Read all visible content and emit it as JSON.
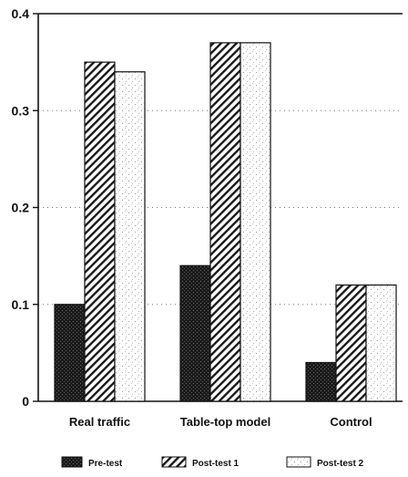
{
  "chart_data": {
    "type": "bar",
    "title": "",
    "xlabel": "",
    "ylabel": "",
    "ylim": [
      0,
      0.4
    ],
    "yticks": [
      0,
      0.1,
      0.2,
      0.3,
      0.4
    ],
    "ytick_labels": [
      "0",
      "0.1",
      "0.2",
      "0.3",
      "0.4"
    ],
    "grid": "horizontal dotted",
    "categories": [
      "Real traffic",
      "Table-top model",
      "Control"
    ],
    "series": [
      {
        "name": "Pre-test",
        "values": [
          0.1,
          0.14,
          0.04
        ],
        "pattern": "dark-stipple",
        "color": "#1e1e1e"
      },
      {
        "name": "Post-test 1",
        "values": [
          0.35,
          0.37,
          0.12
        ],
        "pattern": "diagonal-hatch",
        "color": "#222222"
      },
      {
        "name": "Post-test 2",
        "values": [
          0.34,
          0.37,
          0.12
        ],
        "pattern": "light-stipple",
        "color": "#ffffff"
      }
    ],
    "legend": {
      "position": "bottom"
    }
  }
}
